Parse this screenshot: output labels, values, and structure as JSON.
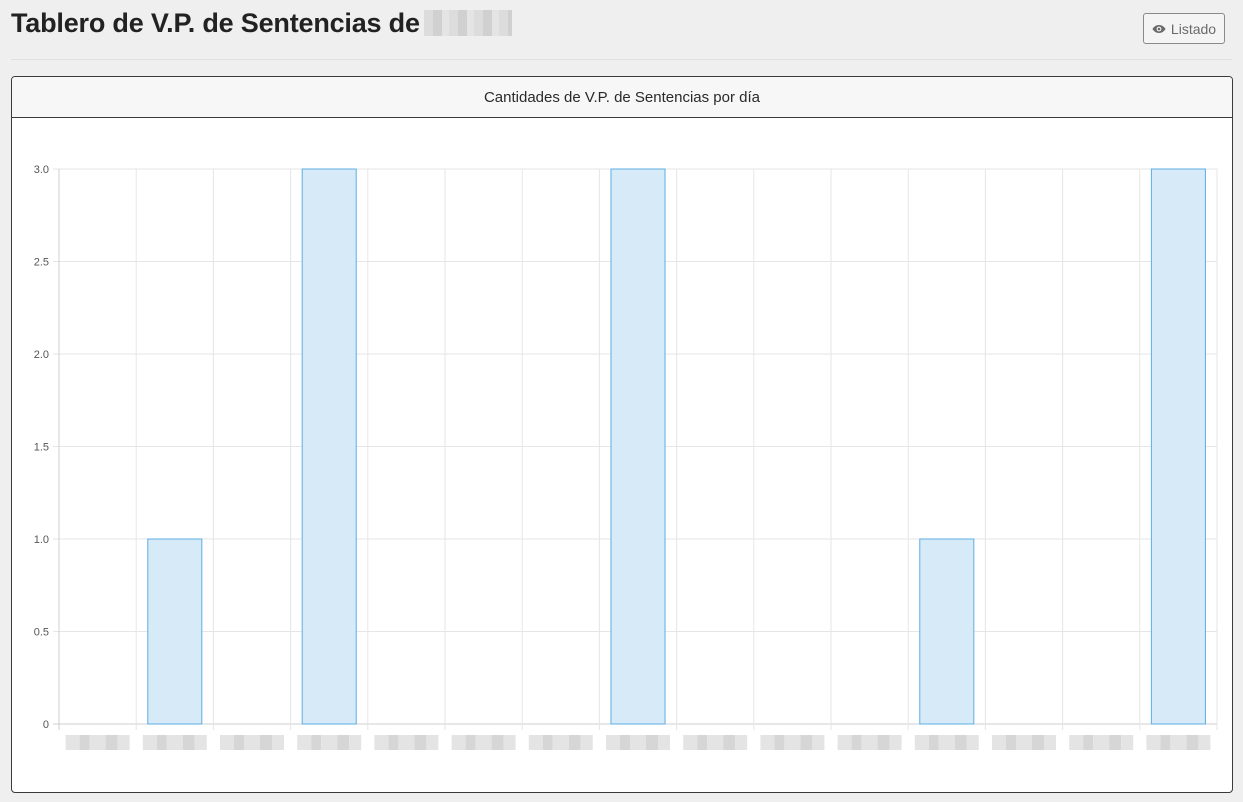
{
  "page": {
    "title": "Tablero de V.P. de Sentencias de"
  },
  "toolbar": {
    "list_label": "Listado",
    "list_icon": "eye-icon"
  },
  "card": {
    "title": "Cantidades de V.P. de Sentencias por día"
  },
  "colors": {
    "bar_fill": "#d6eaf8",
    "bar_stroke": "#5dade2",
    "grid": "#e6e6e6",
    "axis_text": "#555555"
  },
  "chart_data": {
    "type": "bar",
    "title": "Cantidades de V.P. de Sentencias por día",
    "categories": [
      "",
      "",
      "",
      "",
      "",
      "",
      "",
      "",
      "",
      "",
      "",
      "",
      "",
      "",
      ""
    ],
    "values": [
      0,
      1,
      0,
      3,
      0,
      0,
      0,
      3,
      0,
      0,
      0,
      1,
      0,
      0,
      3
    ],
    "y_ticks": [
      "0",
      "0.5",
      "1.0",
      "1.5",
      "2.0",
      "2.5",
      "3.0"
    ],
    "ylim": [
      0,
      3
    ],
    "grid": true,
    "legend": "none",
    "xlabel": "",
    "ylabel": ""
  }
}
